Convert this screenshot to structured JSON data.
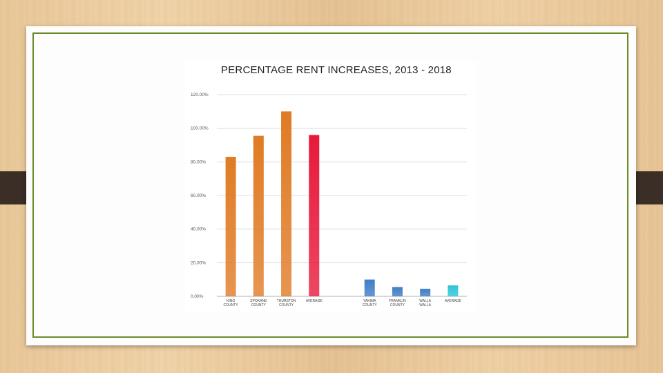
{
  "chart_data": {
    "type": "bar",
    "title": "PERCENTAGE RENT INCREASES, 2013 - 2018",
    "xlabel": "",
    "ylabel": "",
    "ylim": [
      0,
      120
    ],
    "yticks": [
      "0.00%",
      "20.00%",
      "40.00%",
      "60.00%",
      "80.00%",
      "100.00%",
      "120.00%"
    ],
    "grid": true,
    "categories": [
      [
        "KING",
        "COUNTY"
      ],
      [
        "SPOKANE",
        "COUNTY"
      ],
      [
        "THURSTON",
        "COUNTY"
      ],
      [
        "AVERAGE"
      ],
      [],
      [
        "YAKIMA",
        "COUNTY"
      ],
      [
        "FRANKLIN",
        "COUNTY"
      ],
      [
        "WALLA",
        "WALLA"
      ],
      [
        "AVERAGE"
      ]
    ],
    "values": [
      83,
      95.5,
      110,
      96,
      null,
      10,
      5.5,
      4.5,
      6.5
    ],
    "colors": [
      "#e07b25",
      "#e07b25",
      "#e07b25",
      "#e8193a",
      null,
      "#3f7ec4",
      "#3f7ec4",
      "#3f7ec4",
      "#2ec4d8"
    ]
  }
}
